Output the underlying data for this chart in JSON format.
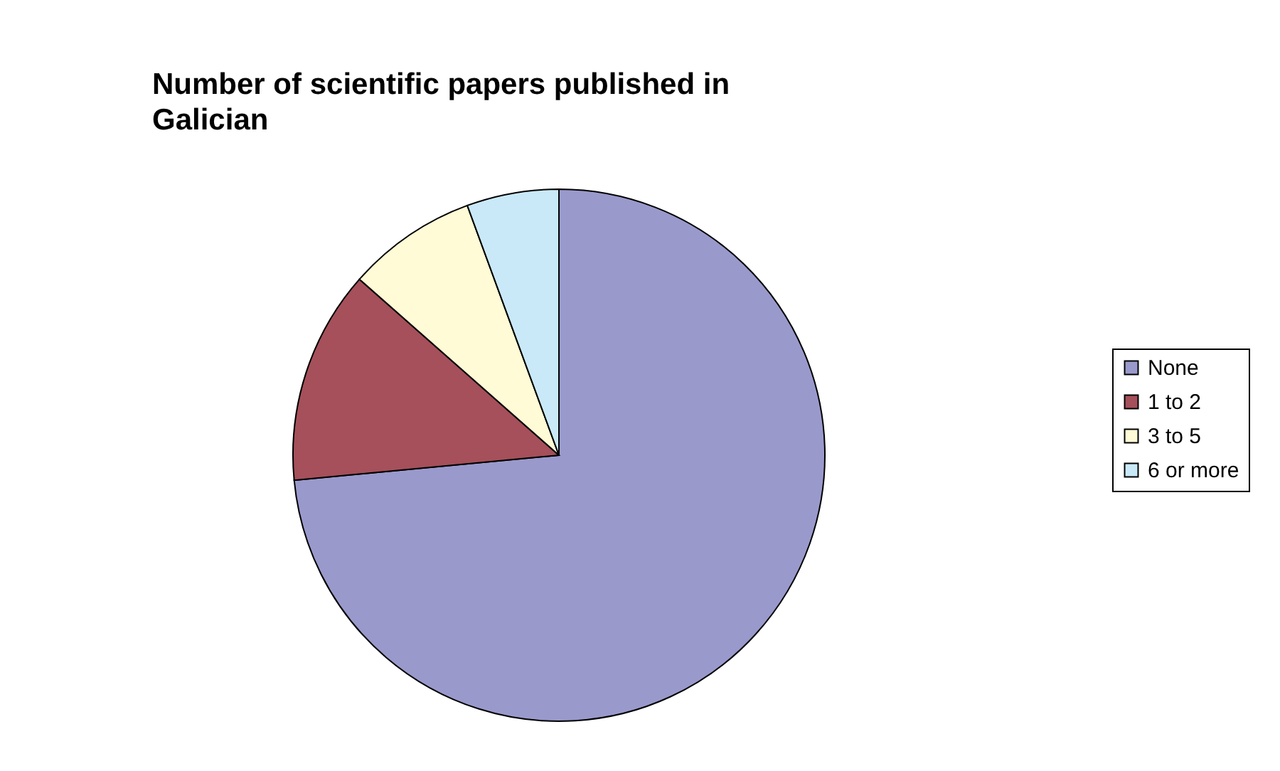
{
  "chart_data": {
    "type": "pie",
    "title": "Number of scientific papers published in Galician",
    "categories": [
      "None",
      "1 to 2",
      "3 to 5",
      "6 or more"
    ],
    "values": [
      73.5,
      13,
      7.9,
      5.6
    ],
    "colors": [
      "#9999cc",
      "#a5505a",
      "#fffbd6",
      "#c9e9f8"
    ],
    "legend": "right"
  }
}
